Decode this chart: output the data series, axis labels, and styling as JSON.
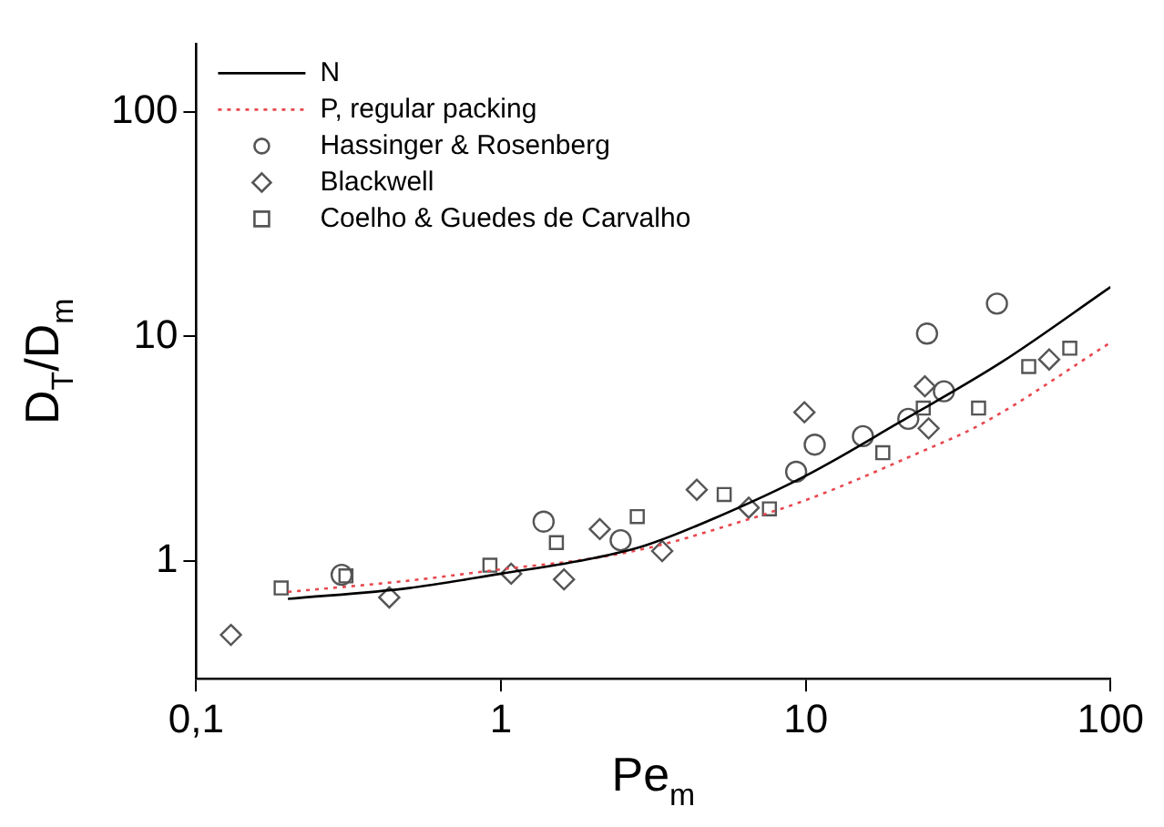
{
  "chart_data": {
    "type": "scatter",
    "xlabel": "Pe$_{m}$",
    "ylabel": "D$_{T}$/D$_{m}$",
    "log": "xy",
    "grid": false,
    "legend": "top left",
    "xlim": [
      0.1,
      100
    ],
    "xticks": [
      {
        "value": 0.1,
        "label": "0,1"
      },
      1,
      10,
      100
    ],
    "ylim": [
      0.3,
      200
    ],
    "yticks": [
      1,
      10,
      100
    ],
    "series": [
      {
        "name": "N",
        "type": "line",
        "color": "#000000",
        "line_style": "solid",
        "marker": "none",
        "x": [
          0.2,
          0.5,
          1,
          2,
          3,
          5,
          10,
          20,
          44,
          100
        ],
        "values": [
          0.68,
          0.76,
          0.88,
          1.03,
          1.18,
          1.55,
          2.4,
          4.1,
          7.7,
          16.6
        ]
      },
      {
        "name": "P, regular packing",
        "type": "line",
        "color": "#e8474f",
        "line_style": "dotted",
        "marker": "none",
        "x": [
          0.2,
          0.5,
          1,
          2,
          3.25,
          5,
          10,
          23,
          38,
          100
        ],
        "values": [
          0.73,
          0.82,
          0.92,
          1.03,
          1.17,
          1.38,
          1.87,
          3.0,
          4.1,
          9.4
        ]
      },
      {
        "name": "Hassinger & Rosenberg",
        "type": "scatter",
        "color": "#555555",
        "marker": "circle",
        "x": [
          0.3,
          1.38,
          2.47,
          9.3,
          10.7,
          15.4,
          21.7,
          28.4,
          25,
          42.4
        ],
        "values": [
          0.87,
          1.5,
          1.24,
          2.5,
          3.3,
          3.6,
          4.3,
          5.7,
          10.3,
          14.0
        ]
      },
      {
        "name": "Blackwell",
        "type": "scatter",
        "color": "#555555",
        "marker": "diamond",
        "x": [
          0.13,
          0.43,
          1.08,
          1.61,
          2.11,
          3.38,
          4.39,
          6.5,
          9.9,
          24.6,
          25.3,
          62.9
        ],
        "values": [
          0.47,
          0.69,
          0.88,
          0.83,
          1.39,
          1.11,
          2.08,
          1.73,
          4.6,
          6.0,
          3.9,
          7.9
        ]
      },
      {
        "name": "Coelho & Guedes de Carvalho",
        "type": "scatter",
        "color": "#555555",
        "marker": "square",
        "x": [
          0.19,
          0.31,
          0.92,
          1.52,
          2.8,
          5.4,
          7.6,
          17.9,
          24.3,
          36.9,
          53.9,
          73.5
        ],
        "values": [
          0.76,
          0.86,
          0.96,
          1.21,
          1.58,
          1.98,
          1.71,
          3.04,
          4.8,
          4.8,
          7.35,
          8.87
        ]
      }
    ]
  }
}
